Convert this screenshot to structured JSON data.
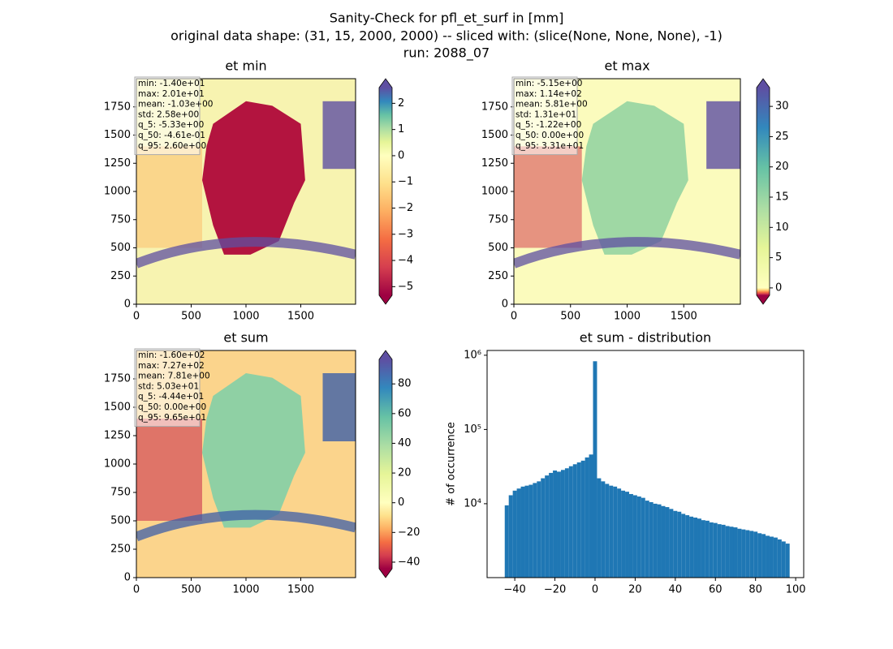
{
  "suptitle": [
    "Sanity-Check for pfl_et_surf in [mm]",
    "original data shape: (31, 15, 2000, 2000) -- sliced with: (slice(None, None, None), -1)",
    "run: 2088_07"
  ],
  "chart_data": [
    {
      "type": "heatmap",
      "title": "et min",
      "xlim": [
        0,
        2000
      ],
      "ylim": [
        0,
        2000
      ],
      "xticks": [
        0,
        500,
        1000,
        1500
      ],
      "yticks": [
        0,
        250,
        500,
        750,
        1000,
        1250,
        1500,
        1750
      ],
      "annotation": [
        "min: -1.40e+01",
        "max: 2.01e+01",
        "mean: -1.03e+00",
        "std: 2.58e+00",
        "q_5: -5.33e+00",
        "q_50: -4.61e-01",
        "q_95: 2.60e+00"
      ],
      "clim": [
        -5.33,
        2.6
      ],
      "vcenter": 0,
      "cticks": [
        {
          "value": -5,
          "label": "−5"
        },
        {
          "value": -4,
          "label": "−4"
        },
        {
          "value": -3,
          "label": "−3"
        },
        {
          "value": -2,
          "label": "−2"
        },
        {
          "value": -1,
          "label": "−1"
        },
        0,
        1,
        2
      ],
      "colormap": [
        "#9e0142",
        "#d53e4f",
        "#f46d43",
        "#fdae61",
        "#fee08b",
        "#ffffbf",
        "#e6f598",
        "#abdda4",
        "#66c2a5",
        "#3288bd",
        "#5e4fa2"
      ]
    },
    {
      "type": "heatmap",
      "title": "et max",
      "xlim": [
        0,
        2000
      ],
      "ylim": [
        0,
        2000
      ],
      "xticks": [
        0,
        500,
        1000,
        1500
      ],
      "yticks": [
        0,
        250,
        500,
        750,
        1000,
        1250,
        1500,
        1750
      ],
      "annotation": [
        "min: -5.15e+00",
        "max: 1.14e+02",
        "mean: 5.81e+00",
        "std: 1.31e+01",
        "q_5: -1.22e+00",
        "q_50: 0.00e+00",
        "q_95: 3.31e+01"
      ],
      "clim": [
        -1.22,
        33.1
      ],
      "vcenter": 0,
      "cticks": [
        0,
        5,
        10,
        15,
        20,
        25,
        30
      ],
      "colormap": [
        "#9e0142",
        "#d53e4f",
        "#f46d43",
        "#fdae61",
        "#fee08b",
        "#ffffbf",
        "#e6f598",
        "#abdda4",
        "#66c2a5",
        "#3288bd",
        "#5e4fa2"
      ]
    },
    {
      "type": "heatmap",
      "title": "et sum",
      "xlim": [
        0,
        2000
      ],
      "ylim": [
        0,
        2000
      ],
      "xticks": [
        0,
        500,
        1000,
        1500
      ],
      "yticks": [
        0,
        250,
        500,
        750,
        1000,
        1250,
        1500,
        1750
      ],
      "annotation": [
        "min: -1.60e+02",
        "max: 7.27e+02",
        "mean: 7.81e+00",
        "std: 5.03e+01",
        "q_5: -4.44e+01",
        "q_50: 0.00e+00",
        "q_95: 9.65e+01"
      ],
      "clim": [
        -44.4,
        96.5
      ],
      "vcenter": 0,
      "cticks": [
        {
          "value": -40,
          "label": "−40"
        },
        {
          "value": -20,
          "label": "−20"
        },
        0,
        20,
        40,
        60,
        80
      ],
      "colormap": [
        "#9e0142",
        "#d53e4f",
        "#f46d43",
        "#fdae61",
        "#fee08b",
        "#ffffbf",
        "#e6f598",
        "#abdda4",
        "#66c2a5",
        "#3288bd",
        "#5e4fa2"
      ]
    },
    {
      "type": "histogram",
      "title": "et sum - distribution",
      "ylabel": "# of occurrence",
      "color": "#1f77b4",
      "bins": [
        -45,
        -43,
        -41,
        -39,
        -37,
        -35,
        -33,
        -31,
        -29,
        -27,
        -25,
        -23,
        -21,
        -19,
        -17,
        -15,
        -13,
        -11,
        -9,
        -7,
        -5,
        -3,
        -1,
        1,
        3,
        5,
        7,
        9,
        11,
        13,
        15,
        17,
        19,
        21,
        23,
        25,
        27,
        29,
        31,
        33,
        35,
        37,
        39,
        41,
        43,
        45,
        47,
        49,
        51,
        53,
        55,
        57,
        59,
        61,
        63,
        65,
        67,
        69,
        71,
        73,
        75,
        77,
        79,
        81,
        83,
        85,
        87,
        89,
        91,
        93,
        95,
        97
      ],
      "values": [
        9500,
        13000,
        15000,
        16000,
        17000,
        17500,
        18000,
        19000,
        20000,
        22000,
        24000,
        26000,
        28000,
        27000,
        28500,
        30000,
        32000,
        34000,
        36000,
        38000,
        42000,
        46000,
        830000,
        22000,
        20000,
        18500,
        17500,
        17000,
        16000,
        15000,
        14500,
        13500,
        13000,
        12500,
        12000,
        11000,
        10500,
        10000,
        9800,
        9300,
        9000,
        8500,
        8000,
        7800,
        7300,
        7000,
        6700,
        6500,
        6300,
        6000,
        5900,
        5600,
        5500,
        5300,
        5200,
        5000,
        4900,
        4800,
        4600,
        4500,
        4400,
        4300,
        4200,
        4000,
        3900,
        3700,
        3600,
        3500,
        3300,
        3100,
        2900
      ],
      "xlim": [
        -53.8,
        104
      ],
      "xticks": [
        {
          "value": -40,
          "label": "−40"
        },
        {
          "value": -20,
          "label": "−20"
        },
        0,
        20,
        40,
        60,
        80,
        100
      ],
      "ylim": [
        1010,
        1160000
      ],
      "log_y": true,
      "yticks": [
        {
          "value": 10000,
          "label": "10⁴"
        },
        {
          "value": 100000,
          "label": "10⁵"
        },
        {
          "value": 1000000,
          "label": "10⁶"
        }
      ]
    }
  ]
}
